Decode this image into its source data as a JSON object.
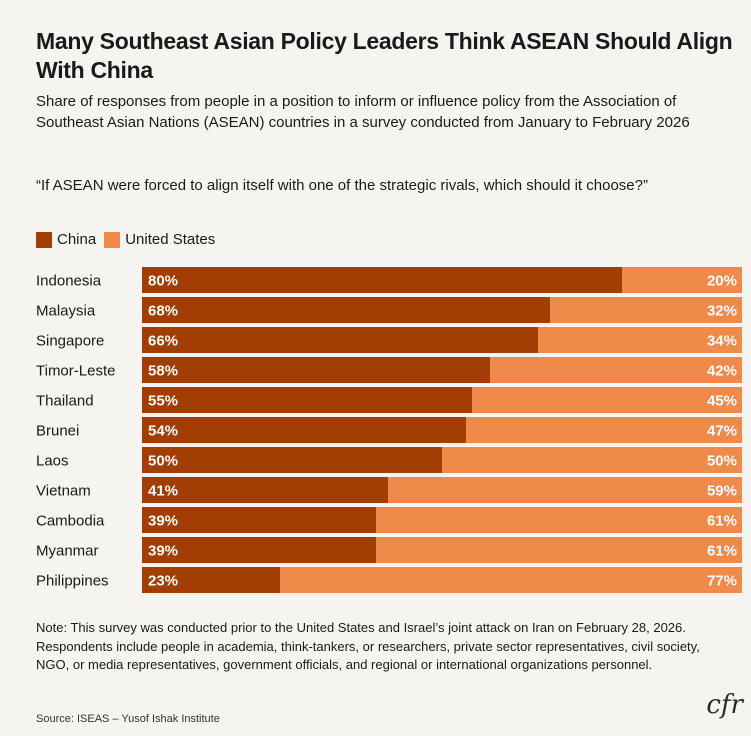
{
  "header": {
    "title": "Many Southeast Asian Policy Leaders Think ASEAN Should Align With China",
    "subtitle": "Share of responses from people in a position to inform or influence policy from the Association of Southeast Asian Nations (ASEAN) countries in a survey conducted from January to February 2026",
    "question": "“If ASEAN were forced to align itself with one of the strategic rivals, which should it choose?”"
  },
  "legend": {
    "china": "China",
    "us": "United States"
  },
  "colors": {
    "china": "#a23e03",
    "us": "#ef8a4b",
    "background": "#f6f4f1"
  },
  "chart_data": {
    "type": "bar",
    "orientation": "horizontal-stacked-100",
    "categories": [
      "Indonesia",
      "Malaysia",
      "Singapore",
      "Timor-Leste",
      "Thailand",
      "Brunei",
      "Laos",
      "Vietnam",
      "Cambodia",
      "Myanmar",
      "Philippines"
    ],
    "series": [
      {
        "name": "China",
        "values": [
          80,
          68,
          66,
          58,
          55,
          54,
          50,
          41,
          39,
          39,
          23
        ]
      },
      {
        "name": "United States",
        "values": [
          20,
          32,
          34,
          42,
          45,
          47,
          50,
          59,
          61,
          61,
          77
        ]
      }
    ],
    "value_suffix": "%",
    "xlim": [
      0,
      100
    ]
  },
  "footer": {
    "note": "Note: This survey was conducted prior to the United States and Israel’s joint attack on Iran on February 28, 2026. Respondents include people in academia, think-tankers, or researchers, private sector representatives, civil society, NGO, or media representatives, government officials, and regional or international organizations personnel.",
    "source": "Source: ISEAS – Yusof Ishak Institute",
    "logo": "cfr"
  }
}
